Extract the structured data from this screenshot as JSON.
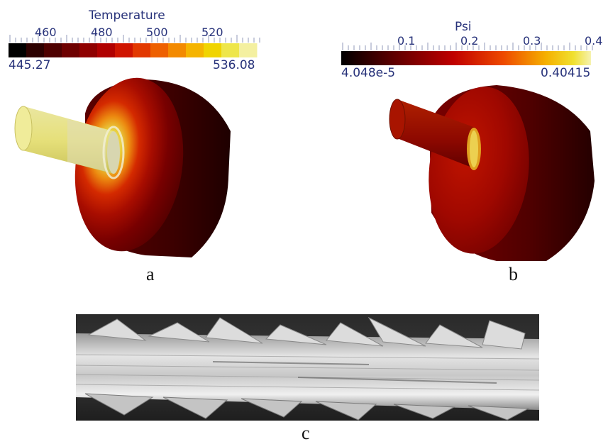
{
  "panels": {
    "a": {
      "label": "a",
      "legend": {
        "title": "Temperature",
        "ticks": [
          "460",
          "480",
          "500",
          "520"
        ],
        "min": "445.27",
        "max": "536.08",
        "colors": [
          "#000000",
          "#2c0000",
          "#4e0000",
          "#6e0000",
          "#8f0000",
          "#b00000",
          "#cf1400",
          "#e23800",
          "#ee6000",
          "#f38a00",
          "#f5b400",
          "#f0d400",
          "#eee64a",
          "#f4f0a0"
        ]
      }
    },
    "b": {
      "label": "b",
      "legend": {
        "title": "Psi",
        "ticks": [
          "0.1",
          "0.2",
          "0.3",
          "0.4"
        ],
        "min": "4.048e-5",
        "max": "0.40415"
      }
    },
    "c": {
      "label": "c"
    }
  },
  "colors": {
    "text_blue": "#27327a",
    "cylinder_yellow": "#e6e07a",
    "body_dark_red": "#5a0000"
  }
}
